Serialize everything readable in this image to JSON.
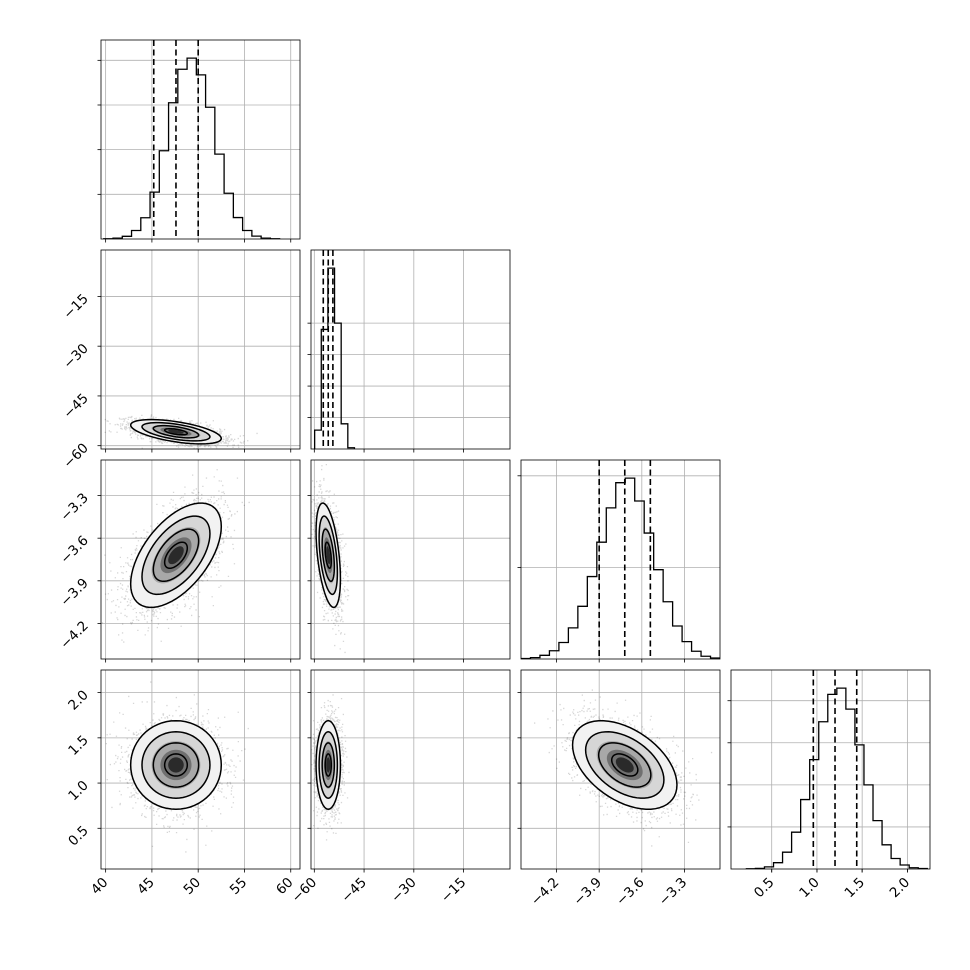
{
  "chart_data": {
    "type": "corner",
    "title": "",
    "parameters": [
      {
        "index": 0,
        "range": [
          39.5,
          61.0
        ],
        "ticks": [
          40,
          45,
          50,
          55,
          60
        ],
        "tick_labels": [
          "40",
          "45",
          "50",
          "55",
          "60"
        ],
        "quantiles": [
          45.2,
          47.6,
          50.0
        ],
        "mean": 47.6,
        "sd": 2.4
      },
      {
        "index": 1,
        "range": [
          -61.0,
          -1.0
        ],
        "ticks": [
          -60,
          -45,
          -30,
          -15
        ],
        "tick_labels": [
          "−60",
          "−45",
          "−30",
          "−15"
        ],
        "quantiles": [
          -57.3,
          -55.8,
          -54.4
        ],
        "mean": -55.8,
        "sd": 1.8
      },
      {
        "index": 2,
        "range": [
          -4.45,
          -3.05
        ],
        "ticks": [
          -4.2,
          -3.9,
          -3.6,
          -3.3
        ],
        "tick_labels": [
          "−4.2",
          "−3.9",
          "−3.6",
          "−3.3"
        ],
        "quantiles": [
          -3.9,
          -3.72,
          -3.54
        ],
        "mean": -3.72,
        "sd": 0.18
      },
      {
        "index": 3,
        "range": [
          0.05,
          2.25
        ],
        "ticks": [
          0.5,
          1.0,
          1.5,
          2.0
        ],
        "tick_labels": [
          "0.5",
          "1.0",
          "1.5",
          "2.0"
        ],
        "quantiles": [
          0.96,
          1.2,
          1.44
        ],
        "mean": 1.2,
        "sd": 0.24
      }
    ],
    "histogram_counts": {
      "p0": [
        1,
        4,
        12,
        38,
        95,
        210,
        395,
        610,
        760,
        810,
        735,
        590,
        380,
        205,
        96,
        38,
        13,
        4,
        1
      ],
      "p1": [
        120,
        760,
        1150,
        800,
        160,
        8
      ],
      "p2": [
        1,
        3,
        8,
        18,
        36,
        68,
        115,
        180,
        255,
        330,
        385,
        395,
        345,
        275,
        195,
        125,
        72,
        38,
        17,
        6,
        2
      ],
      "p3": [
        1,
        3,
        10,
        30,
        80,
        175,
        330,
        520,
        700,
        830,
        860,
        760,
        590,
        400,
        230,
        115,
        50,
        19,
        6,
        2
      ]
    },
    "pairs": [
      {
        "x": 0,
        "y": 1,
        "correlation": -0.55
      },
      {
        "x": 0,
        "y": 2,
        "correlation": 0.55
      },
      {
        "x": 1,
        "y": 2,
        "correlation": -0.45
      },
      {
        "x": 0,
        "y": 3,
        "correlation": 0.0
      },
      {
        "x": 1,
        "y": 3,
        "correlation": 0.0
      },
      {
        "x": 2,
        "y": 3,
        "correlation": -0.45
      }
    ],
    "contour_levels_sigma": [
      0.5,
      1.0,
      1.5,
      2.0
    ],
    "grid": true,
    "legend": "none"
  }
}
